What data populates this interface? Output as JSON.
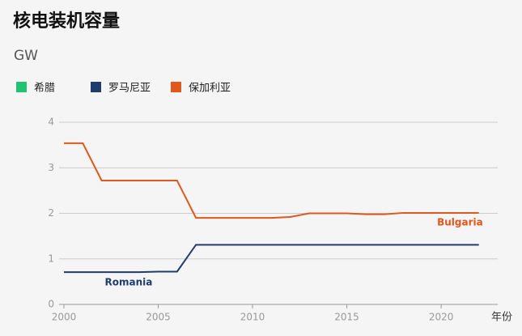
{
  "chart_data": {
    "type": "line",
    "title": "核电装机容量",
    "subtitle": "GW",
    "x_label": "年份",
    "x": [
      2000,
      2001,
      2002,
      2003,
      2004,
      2005,
      2006,
      2007,
      2008,
      2009,
      2010,
      2011,
      2012,
      2013,
      2014,
      2015,
      2016,
      2017,
      2018,
      2019,
      2020,
      2021,
      2022
    ],
    "series": [
      {
        "name": "希腊",
        "color": "#1fc472",
        "values": [
          null,
          null,
          null,
          null,
          null,
          null,
          null,
          null,
          null,
          null,
          null,
          null,
          null,
          null,
          null,
          null,
          null,
          null,
          null,
          null,
          null,
          null,
          null
        ]
      },
      {
        "name": "罗马尼亚",
        "color": "#1f3c6e",
        "label": "Romania",
        "values": [
          0.71,
          0.71,
          0.71,
          0.71,
          0.71,
          0.72,
          0.72,
          1.31,
          1.31,
          1.31,
          1.31,
          1.31,
          1.31,
          1.31,
          1.31,
          1.31,
          1.31,
          1.31,
          1.31,
          1.31,
          1.31,
          1.31,
          1.31
        ]
      },
      {
        "name": "保加利亚",
        "color": "#e0581b",
        "label": "Bulgaria",
        "values": [
          3.54,
          3.54,
          2.72,
          2.72,
          2.72,
          2.72,
          2.72,
          1.9,
          1.9,
          1.9,
          1.9,
          1.9,
          1.92,
          2.0,
          2.0,
          2.0,
          1.98,
          1.98,
          2.01,
          2.01,
          2.01,
          2.01,
          2.01
        ]
      }
    ],
    "xlim": [
      2000,
      2023
    ],
    "xticks": [
      2000,
      2005,
      2010,
      2015,
      2020
    ],
    "ylim": [
      0,
      4
    ],
    "yticks": [
      0,
      1,
      2,
      3,
      4
    ],
    "grid": true
  }
}
